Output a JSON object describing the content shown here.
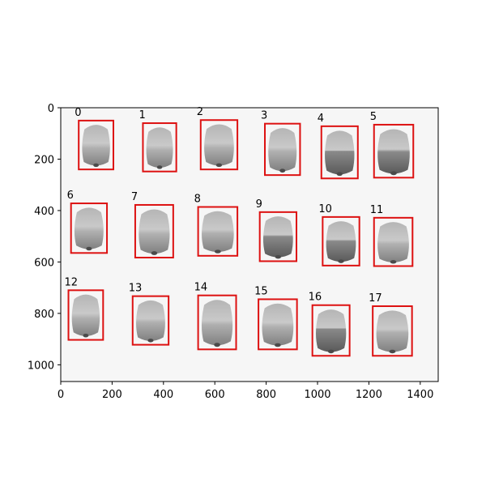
{
  "image": {
    "width_units": 1470,
    "height_units": 1065,
    "background_color": "#f6f6f6",
    "seed_color_light": "#c9c9c9",
    "seed_color_dark": "#5a5a5a"
  },
  "axes": {
    "x_ticks": [
      {
        "value": 0,
        "label": "0"
      },
      {
        "value": 200,
        "label": "200"
      },
      {
        "value": 400,
        "label": "400"
      },
      {
        "value": 600,
        "label": "600"
      },
      {
        "value": 800,
        "label": "800"
      },
      {
        "value": 1000,
        "label": "1000"
      },
      {
        "value": 1200,
        "label": "1200"
      },
      {
        "value": 1400,
        "label": "1400"
      }
    ],
    "y_ticks": [
      {
        "value": 0,
        "label": "0"
      },
      {
        "value": 200,
        "label": "200"
      },
      {
        "value": 400,
        "label": "400"
      },
      {
        "value": 600,
        "label": "600"
      },
      {
        "value": 800,
        "label": "800"
      },
      {
        "value": 1000,
        "label": "1000"
      }
    ]
  },
  "detections": {
    "box_color": "#dd1111",
    "items": [
      {
        "label": "0",
        "x0": 70,
        "y0": 50,
        "x1": 205,
        "y1": 240,
        "darkness": 0.15
      },
      {
        "label": "1",
        "x0": 320,
        "y0": 60,
        "x1": 450,
        "y1": 248,
        "darkness": 0.2
      },
      {
        "label": "2",
        "x0": 545,
        "y0": 48,
        "x1": 688,
        "y1": 240,
        "darkness": 0.15
      },
      {
        "label": "3",
        "x0": 795,
        "y0": 62,
        "x1": 932,
        "y1": 262,
        "darkness": 0.3
      },
      {
        "label": "4",
        "x0": 1015,
        "y0": 72,
        "x1": 1157,
        "y1": 275,
        "darkness": 0.65
      },
      {
        "label": "5",
        "x0": 1220,
        "y0": 66,
        "x1": 1373,
        "y1": 272,
        "darkness": 0.45
      },
      {
        "label": "6",
        "x0": 40,
        "y0": 372,
        "x1": 180,
        "y1": 565,
        "darkness": 0.15
      },
      {
        "label": "7",
        "x0": 290,
        "y0": 378,
        "x1": 438,
        "y1": 583,
        "darkness": 0.2
      },
      {
        "label": "8",
        "x0": 535,
        "y0": 386,
        "x1": 688,
        "y1": 576,
        "darkness": 0.3
      },
      {
        "label": "9",
        "x0": 775,
        "y0": 406,
        "x1": 918,
        "y1": 597,
        "darkness": 0.55
      },
      {
        "label": "10",
        "x0": 1020,
        "y0": 425,
        "x1": 1163,
        "y1": 614,
        "darkness": 0.55
      },
      {
        "label": "11",
        "x0": 1220,
        "y0": 428,
        "x1": 1370,
        "y1": 616,
        "darkness": 0.25
      },
      {
        "label": "12",
        "x0": 30,
        "y0": 710,
        "x1": 165,
        "y1": 903,
        "darkness": 0.15
      },
      {
        "label": "13",
        "x0": 280,
        "y0": 733,
        "x1": 420,
        "y1": 922,
        "darkness": 0.3
      },
      {
        "label": "14",
        "x0": 535,
        "y0": 730,
        "x1": 683,
        "y1": 940,
        "darkness": 0.3
      },
      {
        "label": "15",
        "x0": 770,
        "y0": 745,
        "x1": 920,
        "y1": 940,
        "darkness": 0.25
      },
      {
        "label": "16",
        "x0": 980,
        "y0": 768,
        "x1": 1125,
        "y1": 965,
        "darkness": 0.8
      },
      {
        "label": "17",
        "x0": 1215,
        "y0": 772,
        "x1": 1368,
        "y1": 965,
        "darkness": 0.35
      }
    ]
  }
}
